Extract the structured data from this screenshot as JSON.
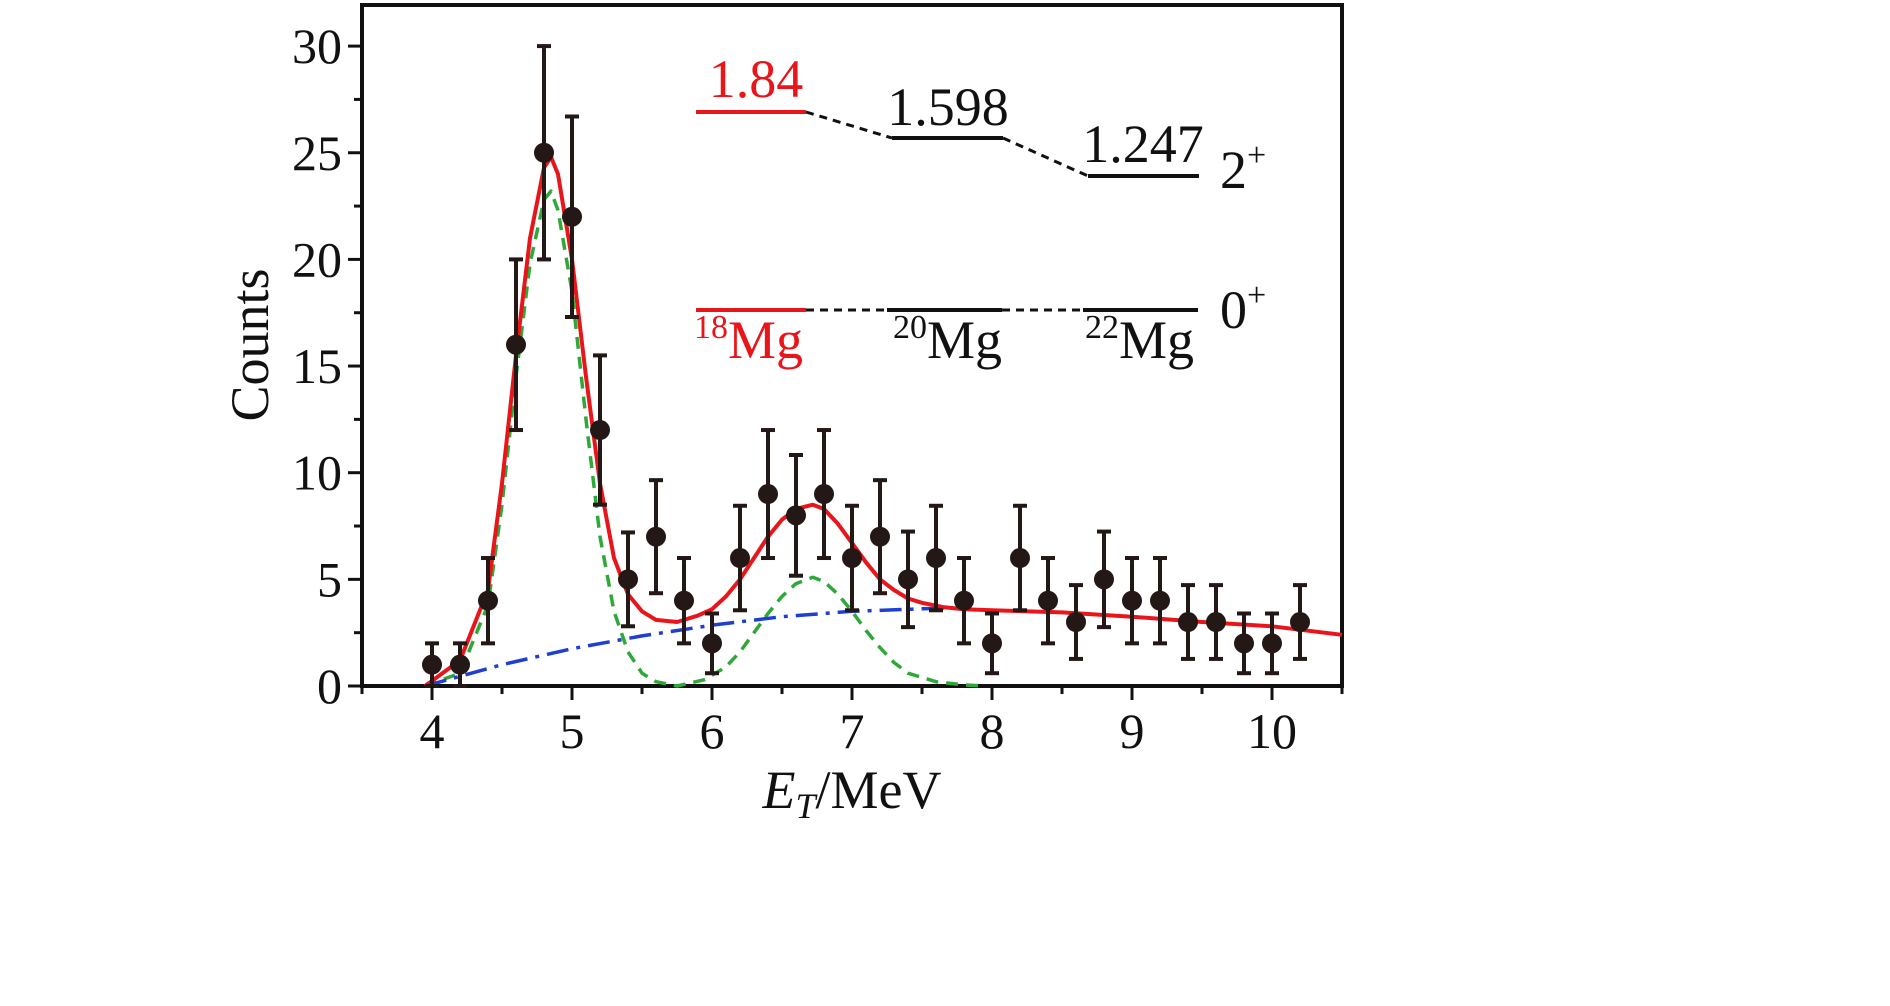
{
  "chart_data": {
    "type": "scatter",
    "title": "",
    "xlabel_main": "E",
    "xlabel_sub": "T",
    "xlabel_rest": "/MeV",
    "ylabel": "Counts",
    "xlim": [
      3.5,
      10.5
    ],
    "ylim": [
      0,
      32
    ],
    "x_ticks": [
      "4",
      "5",
      "6",
      "7",
      "8",
      "9",
      "10"
    ],
    "y_ticks": [
      "0",
      "5",
      "10",
      "15",
      "20",
      "25",
      "30"
    ],
    "grid": false,
    "data_points": [
      {
        "x": 4.0,
        "y": 1,
        "err": 1.0
      },
      {
        "x": 4.2,
        "y": 1,
        "err": 1.0
      },
      {
        "x": 4.4,
        "y": 4,
        "err": 2.0
      },
      {
        "x": 4.6,
        "y": 16,
        "err": 4.0
      },
      {
        "x": 4.8,
        "y": 25,
        "err": 5.0
      },
      {
        "x": 5.0,
        "y": 22,
        "err": 4.7
      },
      {
        "x": 5.2,
        "y": 12,
        "err": 3.5
      },
      {
        "x": 5.4,
        "y": 5,
        "err": 2.2
      },
      {
        "x": 5.6,
        "y": 7,
        "err": 2.65
      },
      {
        "x": 5.8,
        "y": 4,
        "err": 2.0
      },
      {
        "x": 6.0,
        "y": 2,
        "err": 1.4
      },
      {
        "x": 6.2,
        "y": 6,
        "err": 2.45
      },
      {
        "x": 6.4,
        "y": 9,
        "err": 3.0
      },
      {
        "x": 6.6,
        "y": 8,
        "err": 2.83
      },
      {
        "x": 6.8,
        "y": 9,
        "err": 3.0
      },
      {
        "x": 7.0,
        "y": 6,
        "err": 2.45
      },
      {
        "x": 7.2,
        "y": 7,
        "err": 2.65
      },
      {
        "x": 7.4,
        "y": 5,
        "err": 2.24
      },
      {
        "x": 7.6,
        "y": 6,
        "err": 2.45
      },
      {
        "x": 7.8,
        "y": 4,
        "err": 2.0
      },
      {
        "x": 8.0,
        "y": 2,
        "err": 1.4
      },
      {
        "x": 8.2,
        "y": 6,
        "err": 2.45
      },
      {
        "x": 8.4,
        "y": 4,
        "err": 2.0
      },
      {
        "x": 8.6,
        "y": 3,
        "err": 1.73
      },
      {
        "x": 8.8,
        "y": 5,
        "err": 2.24
      },
      {
        "x": 9.0,
        "y": 4,
        "err": 2.0
      },
      {
        "x": 9.2,
        "y": 4,
        "err": 2.0
      },
      {
        "x": 9.4,
        "y": 3,
        "err": 1.73
      },
      {
        "x": 9.6,
        "y": 3,
        "err": 1.73
      },
      {
        "x": 9.8,
        "y": 2,
        "err": 1.4
      },
      {
        "x": 10.0,
        "y": 2,
        "err": 1.4
      },
      {
        "x": 10.2,
        "y": 3,
        "err": 1.73
      }
    ],
    "fit_total": {
      "color": "#e8161b",
      "x": [
        3.95,
        4.2,
        4.4,
        4.5,
        4.6,
        4.7,
        4.8,
        4.85,
        4.9,
        5.0,
        5.1,
        5.2,
        5.3,
        5.4,
        5.5,
        5.6,
        5.75,
        5.9,
        6.0,
        6.1,
        6.2,
        6.3,
        6.4,
        6.5,
        6.6,
        6.72,
        6.8,
        6.9,
        7.0,
        7.1,
        7.2,
        7.3,
        7.4,
        7.5,
        7.65,
        7.8,
        8.0,
        8.5,
        9.0,
        9.5,
        10.0,
        10.5
      ],
      "y": [
        0.0,
        1.2,
        4.5,
        9.5,
        15.5,
        21.0,
        24.3,
        24.8,
        24.0,
        20.0,
        14.5,
        9.5,
        6.0,
        4.3,
        3.5,
        3.1,
        3.0,
        3.3,
        3.6,
        4.2,
        5.0,
        6.0,
        7.0,
        7.8,
        8.3,
        8.5,
        8.3,
        7.6,
        6.7,
        5.8,
        5.0,
        4.5,
        4.1,
        3.9,
        3.7,
        3.6,
        3.55,
        3.45,
        3.25,
        3.0,
        2.8,
        2.4
      ]
    },
    "fit_peaks": {
      "color": "#2fa83a",
      "x": [
        3.95,
        4.2,
        4.4,
        4.5,
        4.6,
        4.7,
        4.8,
        4.85,
        4.9,
        5.0,
        5.1,
        5.2,
        5.3,
        5.4,
        5.5,
        5.6,
        5.75,
        5.95,
        6.1,
        6.2,
        6.3,
        6.4,
        6.5,
        6.6,
        6.72,
        6.8,
        6.9,
        7.0,
        7.1,
        7.2,
        7.3,
        7.4,
        7.6,
        7.8,
        7.95
      ],
      "y": [
        0.0,
        0.6,
        3.8,
        8.5,
        14.5,
        19.8,
        22.8,
        23.2,
        22.3,
        18.5,
        12.5,
        7.0,
        3.5,
        1.6,
        0.6,
        0.2,
        0.0,
        0.3,
        0.9,
        1.6,
        2.5,
        3.4,
        4.2,
        4.8,
        5.1,
        4.9,
        4.3,
        3.5,
        2.6,
        1.8,
        1.1,
        0.6,
        0.2,
        0.05,
        0.0
      ]
    },
    "fit_background": {
      "color": "#1f3fd1",
      "x": [
        3.95,
        4.5,
        5.0,
        5.5,
        6.0,
        6.5,
        7.0,
        7.5,
        7.7
      ],
      "y": [
        0.0,
        1.0,
        1.75,
        2.35,
        2.85,
        3.25,
        3.5,
        3.62,
        3.65
      ]
    },
    "level_scheme": {
      "nuclei": [
        {
          "mass": "18",
          "symbol": "Mg",
          "level_2plus": "1.84",
          "color": "#e8161b"
        },
        {
          "mass": "20",
          "symbol": "Mg",
          "level_2plus": "1.598",
          "color": "#111111"
        },
        {
          "mass": "22",
          "symbol": "Mg",
          "level_2plus": "1.247",
          "color": "#111111"
        }
      ],
      "spin_2plus": "2",
      "spin_0plus": "0",
      "parity": "+"
    }
  }
}
